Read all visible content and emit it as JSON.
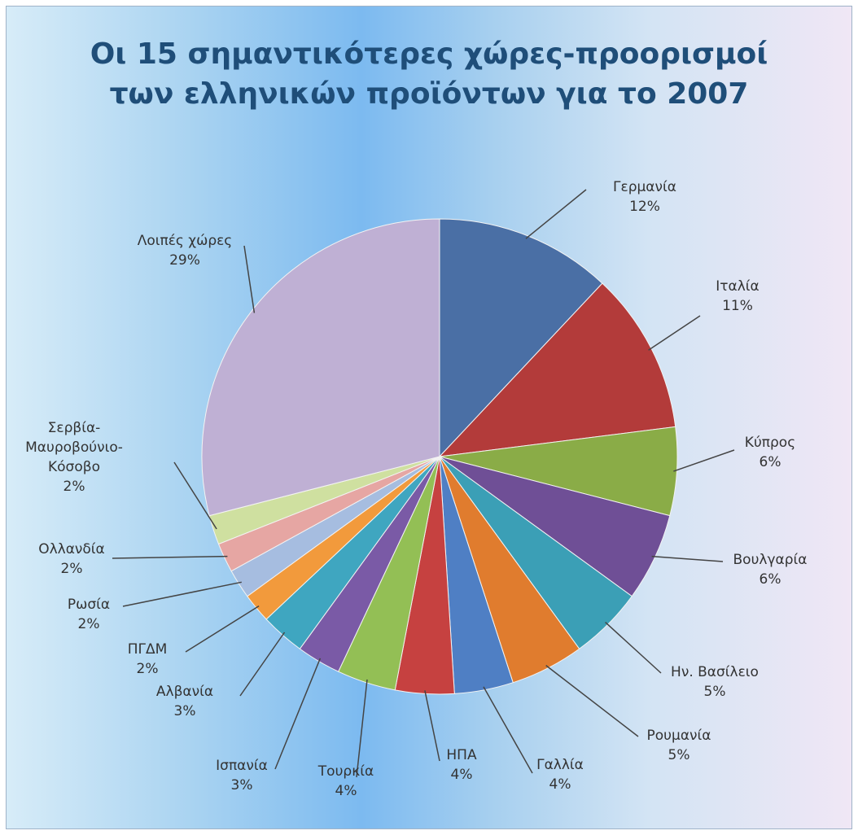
{
  "chart_data": {
    "type": "pie",
    "title": [
      "Οι 15 σημαντικότερες χώρες-προορισμοί",
      "των ελληνικών προϊόντων για το 2007"
    ],
    "slices": [
      {
        "label": [
          "Γερμανία"
        ],
        "value": 12,
        "value_label": "12%",
        "color": "#4a6fa5"
      },
      {
        "label": [
          "Ιταλία"
        ],
        "value": 11,
        "value_label": "11%",
        "color": "#b33b3a"
      },
      {
        "label": [
          "Κύπρος"
        ],
        "value": 6,
        "value_label": "6%",
        "color": "#8aac47"
      },
      {
        "label": [
          "Βουλγαρία"
        ],
        "value": 6,
        "value_label": "6%",
        "color": "#6f4f96"
      },
      {
        "label": [
          "Ην. Βασίλειο"
        ],
        "value": 5,
        "value_label": "5%",
        "color": "#3b9fb6"
      },
      {
        "label": [
          "Ρουμανία"
        ],
        "value": 5,
        "value_label": "5%",
        "color": "#e07c2e"
      },
      {
        "label": [
          "Γαλλία"
        ],
        "value": 4,
        "value_label": "4%",
        "color": "#4f7fc4"
      },
      {
        "label": [
          "ΗΠΑ"
        ],
        "value": 4,
        "value_label": "4%",
        "color": "#c64140"
      },
      {
        "label": [
          "Τουρκία"
        ],
        "value": 4,
        "value_label": "4%",
        "color": "#93bf55"
      },
      {
        "label": [
          "Ισπανία"
        ],
        "value": 3,
        "value_label": "3%",
        "color": "#7a5aa6"
      },
      {
        "label": [
          "Αλβανία"
        ],
        "value": 3,
        "value_label": "3%",
        "color": "#3fa6c0"
      },
      {
        "label": [
          "ΠΓΔΜ"
        ],
        "value": 2,
        "value_label": "2%",
        "color": "#f29a3c"
      },
      {
        "label": [
          "Ρωσία"
        ],
        "value": 2,
        "value_label": "2%",
        "color": "#a6bde0"
      },
      {
        "label": [
          "Ολλανδία"
        ],
        "value": 2,
        "value_label": "2%",
        "color": "#e6a6a3"
      },
      {
        "label": [
          "Σερβία-",
          "Μαυροβούνιο-",
          "Κόσοβο"
        ],
        "value": 2,
        "value_label": "2%",
        "color": "#cfe0a0"
      },
      {
        "label": [
          "Λοιπές χώρες"
        ],
        "value": 29,
        "value_label": "29%",
        "color": "#bfb0d4"
      }
    ],
    "legend": "none",
    "start_angle": "12 o'clock",
    "direction": "clockwise"
  }
}
